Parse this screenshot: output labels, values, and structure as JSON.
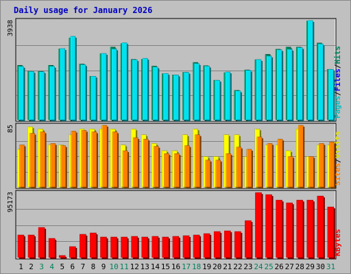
{
  "chart_data": {
    "type": "bar",
    "title": "Daily usage for January 2026",
    "categories": [
      "1",
      "2",
      "3",
      "4",
      "5",
      "6",
      "7",
      "8",
      "9",
      "10",
      "11",
      "12",
      "13",
      "14",
      "15",
      "16",
      "17",
      "18",
      "19",
      "20",
      "21",
      "22",
      "23",
      "24",
      "25",
      "26",
      "27",
      "28",
      "29",
      "30",
      "31"
    ],
    "weekend_days": [
      "3",
      "4",
      "10",
      "11",
      "17",
      "18",
      "24",
      "25",
      "31"
    ],
    "panels": [
      {
        "name": "hits-files-pages",
        "scale_label": "3938",
        "ylim": [
          0,
          3938
        ],
        "axis_labels": [
          {
            "text": "Pages",
            "color": "#00c0c0"
          },
          {
            "text": "Files",
            "color": "#0000ff"
          },
          {
            "text": "Hits",
            "color": "#00805c"
          }
        ],
        "series": [
          {
            "name": "Hits",
            "color": "#00805c",
            "values": [
              2163,
              1925,
              1925,
              2164,
              2816,
              3245,
              2215,
              1727,
              2624,
              2885,
              3024,
              2400,
              2400,
              2131,
              1832,
              1780,
              1885,
              2277,
              2149,
              1570,
              1870,
              1170,
              1980,
              2386,
              2600,
              2800,
              2885,
              2885,
              3918,
              3047,
              2004
            ]
          },
          {
            "name": "Files",
            "color": "#00e0f0",
            "values": [
              2120,
              1920,
              1910,
              2124,
              2826,
              3313,
              2191,
              1730,
              2634,
              2812,
              3056,
              2386,
              2440,
              2096,
              1840,
              1780,
              1884,
              2233,
              2133,
              1570,
              1900,
              1150,
              1963,
              2390,
              2530,
              2780,
              2800,
              2866,
              3938,
              3013,
              2000
            ]
          },
          {
            "name": "Pages",
            "color": "#0000c0",
            "values": [
              0,
              0,
              0,
              0,
              0,
              0,
              0,
              0,
              0,
              0,
              0,
              0,
              0,
              0,
              0,
              0,
              0,
              0,
              0,
              0,
              0,
              0,
              0,
              0,
              0,
              0,
              0,
              0,
              0,
              0,
              0
            ]
          }
        ]
      },
      {
        "name": "visits-sites",
        "scale_label": "85",
        "ylim": [
          0,
          85
        ],
        "axis_labels": [
          {
            "text": "Sites",
            "color": "#ff8000"
          },
          {
            "text": "Visits",
            "color": "#e0e000"
          }
        ],
        "series": [
          {
            "name": "Visits",
            "color": "#ffff00",
            "values": [
              52,
              83,
              80,
              58,
              58,
              72,
              80,
              80,
              80,
              80,
              58,
              80,
              72,
              60,
              50,
              50,
              72,
              80,
              42,
              42,
              72,
              72,
              42,
              80,
              58,
              58,
              50,
              80,
              42,
              58,
              58
            ]
          },
          {
            "name": "Sites",
            "color": "#ff8000",
            "values": [
              58,
              74,
              76,
              60,
              57,
              77,
              78,
              76,
              85,
              76,
              50,
              68,
              66,
              56,
              46,
              46,
              57,
              72,
              37,
              37,
              46,
              55,
              52,
              69,
              60,
              66,
              42,
              85,
              42,
              60,
              62
            ]
          }
        ]
      },
      {
        "name": "kbytes",
        "scale_label": "95173",
        "ylim": [
          0,
          95173
        ],
        "axis_labels": [
          {
            "text": "KBytes",
            "color": "#ff0000"
          }
        ],
        "series": [
          {
            "name": "KBytes",
            "color": "#ff0000",
            "values": [
              33000,
              33000,
              44000,
              28000,
              3000,
              16000,
              34000,
              36000,
              30000,
              30000,
              30000,
              31000,
              30000,
              31000,
              30000,
              31000,
              32000,
              33000,
              35000,
              38000,
              39000,
              38000,
              54000,
              95000,
              92000,
              84000,
              80000,
              84000,
              84000,
              90000,
              74000
            ]
          }
        ]
      }
    ]
  }
}
